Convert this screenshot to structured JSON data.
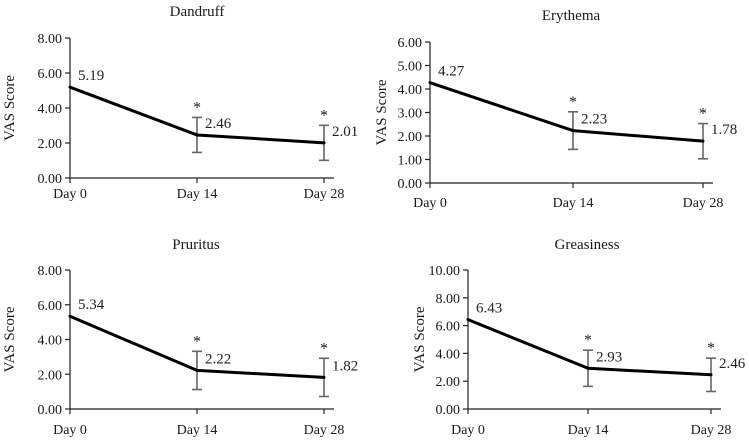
{
  "chart_data": [
    {
      "type": "line",
      "title": "Dandruff",
      "ylabel": "VAS Score",
      "xlabel": "",
      "categories": [
        "Day 0",
        "Day 14",
        "Day 28"
      ],
      "values": [
        5.19,
        2.46,
        2.01
      ],
      "labels": [
        "5.19",
        "2.46",
        "2.01"
      ],
      "errors": [
        0.0,
        1.0,
        1.0
      ],
      "significance": [
        "",
        "*",
        "*"
      ],
      "ylim": [
        0,
        8
      ],
      "yticks": [
        "0.00",
        "2.00",
        "4.00",
        "6.00",
        "8.00"
      ],
      "ytick_values": [
        0,
        2,
        4,
        6,
        8
      ]
    },
    {
      "type": "line",
      "title": "Erythema",
      "ylabel": "VAS Score",
      "xlabel": "",
      "categories": [
        "Day 0",
        "Day 14",
        "Day 28"
      ],
      "values": [
        4.27,
        2.23,
        1.78
      ],
      "labels": [
        "4.27",
        "2.23",
        "1.78"
      ],
      "errors": [
        0.0,
        0.8,
        0.75
      ],
      "significance": [
        "",
        "*",
        "*"
      ],
      "ylim": [
        0,
        6
      ],
      "yticks": [
        "0.00",
        "1.00",
        "2.00",
        "3.00",
        "4.00",
        "5.00",
        "6.00"
      ],
      "ytick_values": [
        0,
        1,
        2,
        3,
        4,
        5,
        6
      ]
    },
    {
      "type": "line",
      "title": "Pruritus",
      "ylabel": "VAS Score",
      "xlabel": "",
      "categories": [
        "Day 0",
        "Day 14",
        "Day 28"
      ],
      "values": [
        5.34,
        2.22,
        1.82
      ],
      "labels": [
        "5.34",
        "2.22",
        "1.82"
      ],
      "errors": [
        0.0,
        1.1,
        1.1
      ],
      "significance": [
        "",
        "*",
        "*"
      ],
      "ylim": [
        0,
        8
      ],
      "yticks": [
        "0.00",
        "2.00",
        "4.00",
        "6.00",
        "8.00"
      ],
      "ytick_values": [
        0,
        2,
        4,
        6,
        8
      ]
    },
    {
      "type": "line",
      "title": "Greasiness",
      "ylabel": "VAS Score",
      "xlabel": "",
      "categories": [
        "Day 0",
        "Day 14",
        "Day 28"
      ],
      "values": [
        6.43,
        2.93,
        2.46
      ],
      "labels": [
        "6.43",
        "2.93",
        "2.46"
      ],
      "errors": [
        0.0,
        1.3,
        1.2
      ],
      "significance": [
        "",
        "*",
        "*"
      ],
      "ylim": [
        0,
        10
      ],
      "yticks": [
        "0.00",
        "2.00",
        "4.00",
        "6.00",
        "8.00",
        "10.00"
      ],
      "ytick_values": [
        0,
        2,
        4,
        6,
        8,
        10
      ]
    }
  ]
}
